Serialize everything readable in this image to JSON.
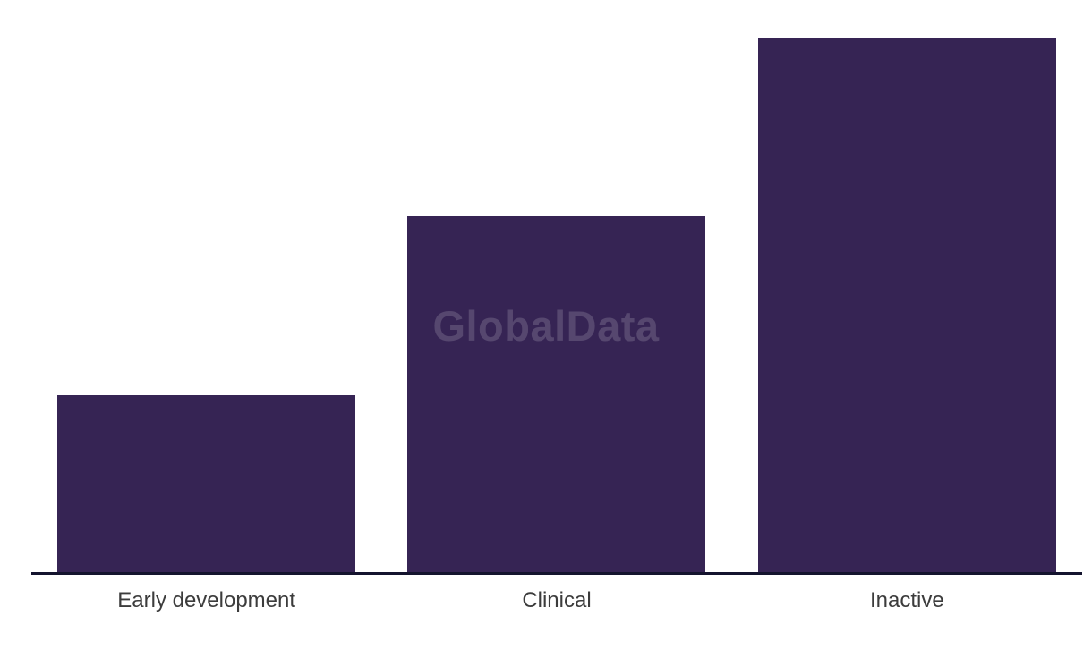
{
  "chart_data": {
    "type": "bar",
    "categories": [
      "Early development",
      "Clinical",
      "Inactive"
    ],
    "values": [
      198,
      398,
      598
    ],
    "value_note": "No y-axis, gridlines or data labels are shown; values are relative bar heights in pixels (ratio approx 1:2:3)",
    "title": "",
    "xlabel": "",
    "ylabel": "",
    "ylim": [
      0,
      640
    ],
    "grid": false,
    "legend": false,
    "bar_color": "#362454",
    "axis_line_color": "#14142e",
    "label_color": "#3c3c3c",
    "background": "#ffffff"
  },
  "watermark": {
    "text": "GlobalData",
    "color": "rgba(255, 255, 255, 0.16)"
  }
}
